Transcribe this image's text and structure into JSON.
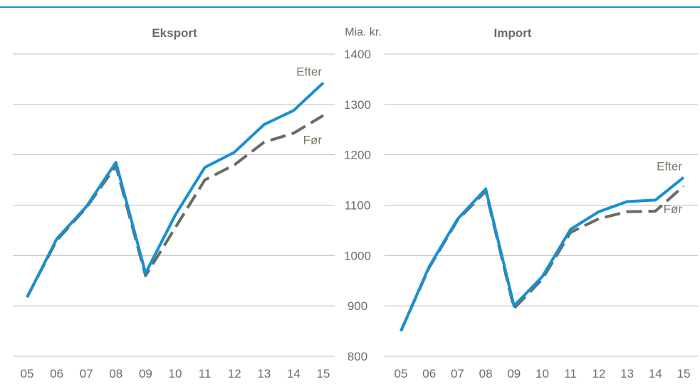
{
  "chart_data": [
    {
      "type": "line",
      "title": "Eksport",
      "categories": [
        "05",
        "06",
        "07",
        "08",
        "09",
        "10",
        "11",
        "12",
        "13",
        "14",
        "15"
      ],
      "ylim": [
        800,
        1400
      ],
      "y_ticks": [
        800,
        900,
        1000,
        1100,
        1200,
        1300,
        1400
      ],
      "ylabel": "Mia. kr.",
      "grid": true,
      "series": [
        {
          "name": "Efter",
          "color": "#1890d0",
          "dash": false,
          "values": [
            917,
            1033,
            1097,
            1185,
            965,
            1080,
            1175,
            1205,
            1260,
            1288,
            1343
          ]
        },
        {
          "name": "Før",
          "color": "#6b6b5f",
          "dash": true,
          "values": [
            917,
            1030,
            1095,
            1178,
            960,
            1055,
            1150,
            1180,
            1225,
            1243,
            1278
          ]
        }
      ]
    },
    {
      "type": "line",
      "title": "Import",
      "categories": [
        "05",
        "06",
        "07",
        "08",
        "09",
        "10",
        "11",
        "12",
        "13",
        "14",
        "15"
      ],
      "ylim": [
        800,
        1400
      ],
      "y_ticks": [
        800,
        900,
        1000,
        1100,
        1200,
        1300,
        1400
      ],
      "grid": true,
      "series": [
        {
          "name": "Efter",
          "color": "#1890d0",
          "dash": false,
          "values": [
            850,
            978,
            1072,
            1132,
            900,
            958,
            1052,
            1087,
            1107,
            1110,
            1155
          ]
        },
        {
          "name": "Før",
          "color": "#6b6b5f",
          "dash": true,
          "values": [
            850,
            976,
            1070,
            1128,
            895,
            953,
            1046,
            1073,
            1087,
            1088,
            1138
          ]
        }
      ]
    }
  ]
}
